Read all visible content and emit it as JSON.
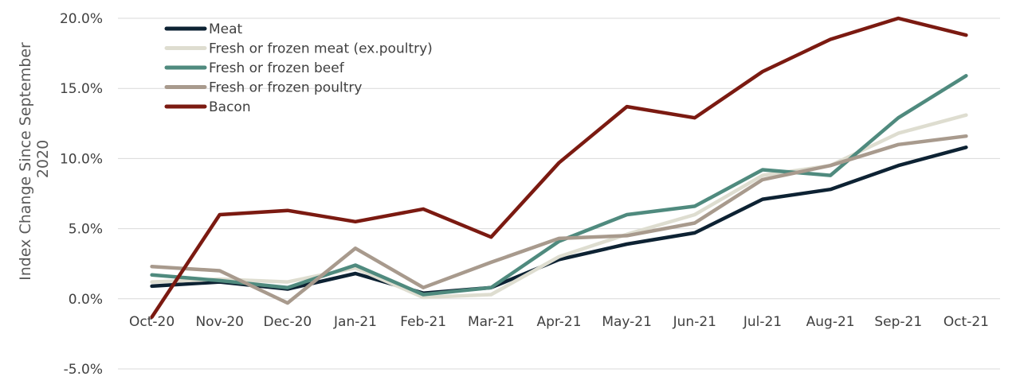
{
  "chart_data": {
    "type": "line",
    "title": "",
    "xlabel": "",
    "ylabel": "Index Change Since September 2020",
    "ylabel_lines": [
      "Index Change Since September",
      "2020"
    ],
    "categories": [
      "Oct-20",
      "Nov-20",
      "Dec-20",
      "Jan-21",
      "Feb-21",
      "Mar-21",
      "Apr-21",
      "May-21",
      "Jun-21",
      "Jul-21",
      "Aug-21",
      "Sep-21",
      "Oct-21"
    ],
    "ylim": [
      -5,
      20
    ],
    "y_ticks": [
      -5,
      0,
      5,
      10,
      15,
      20
    ],
    "y_tick_labels": [
      "-5.0%",
      "0.0%",
      "5.0%",
      "10.0%",
      "15.0%",
      "20.0%"
    ],
    "grid": true,
    "legend_position": "top-left",
    "series": [
      {
        "name": "Meat",
        "color": "#0d2233",
        "values": [
          0.9,
          1.2,
          0.7,
          1.8,
          0.4,
          0.8,
          2.8,
          3.9,
          4.7,
          7.1,
          7.8,
          9.5,
          10.8
        ]
      },
      {
        "name": "Fresh or frozen meat (ex.poultry)",
        "color": "#deddd0",
        "values": [
          1.2,
          1.4,
          1.2,
          2.2,
          0.1,
          0.3,
          3.0,
          4.6,
          6.0,
          8.8,
          9.5,
          11.8,
          13.1
        ]
      },
      {
        "name": "Fresh or frozen beef",
        "color": "#4f8a7e",
        "values": [
          1.7,
          1.3,
          0.8,
          2.4,
          0.3,
          0.8,
          4.1,
          6.0,
          6.6,
          9.2,
          8.8,
          12.9,
          15.9
        ]
      },
      {
        "name": "Fresh or frozen poultry",
        "color": "#a89a8d",
        "values": [
          2.3,
          2.0,
          -0.3,
          3.6,
          0.8,
          2.6,
          4.3,
          4.5,
          5.4,
          8.5,
          9.5,
          11.0,
          11.6
        ]
      },
      {
        "name": "Bacon",
        "color": "#7b1a11",
        "values": [
          -1.3,
          6.0,
          6.3,
          5.5,
          6.4,
          4.4,
          9.7,
          13.7,
          12.9,
          16.2,
          18.5,
          20.0,
          18.8
        ]
      }
    ]
  }
}
